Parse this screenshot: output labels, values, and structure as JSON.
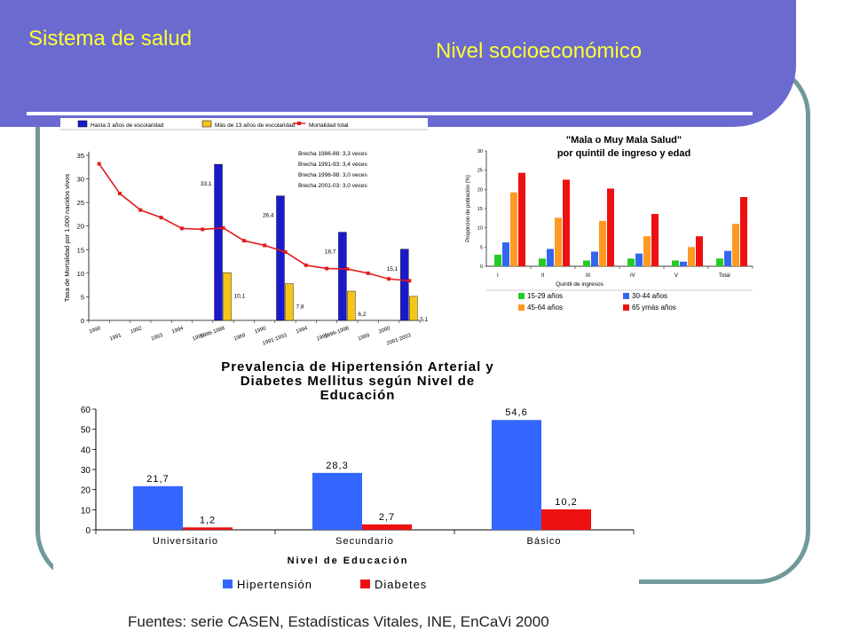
{
  "slide": {
    "title": "Sistema de salud",
    "subtitle": "Nivel socioeconómico",
    "sources": "Fuentes: serie CASEN, Estadísticas Vitales, INE, EnCaVi 2000"
  },
  "colors": {
    "banner": "#6a6ad0",
    "title_text": "#ffff33",
    "frame": "#6f9a99"
  },
  "chart_data": [
    {
      "id": "mortality",
      "type": "bar+line",
      "title": "",
      "xlabel": "",
      "ylabel": "Tasa de Mortalidad por 1.000 nacidos vivos",
      "ylim": [
        0,
        35
      ],
      "yticks": [
        0,
        5,
        10,
        15,
        20,
        25,
        30,
        35
      ],
      "legend": [
        "Hasta 3 años de escolaridad",
        "Más de 13 años de escolaridad",
        "Mortalidad total"
      ],
      "legend_position": "top",
      "series_colors": [
        "#1a1acc",
        "#f5c518",
        "#e21b1b"
      ],
      "categories": [
        "1990",
        "1991",
        "1992",
        "1993",
        "1994",
        "1995",
        "1986-1988",
        "1989",
        "1990",
        "1991-1993",
        "1994",
        "1995",
        "1996-1998",
        "1999",
        "2000",
        "2001-2003"
      ],
      "line_values": [
        33.2,
        26.9,
        23.4,
        21.8,
        19.5,
        19.3,
        19.6,
        16.9,
        15.9,
        14.5,
        11.7,
        11.0,
        10.9,
        10.0,
        8.8,
        8.4
      ],
      "bars": [
        {
          "category_index": 6,
          "low_edu": 33.1,
          "high_edu": 10.1,
          "low_label": "33,1",
          "high_label": "10,1"
        },
        {
          "category_index": 9,
          "low_edu": 26.4,
          "high_edu": 7.8,
          "low_label": "26,4",
          "high_label": "7,8"
        },
        {
          "category_index": 12,
          "low_edu": 18.7,
          "high_edu": 6.2,
          "low_label": "18,7",
          "high_label": "6,2"
        },
        {
          "category_index": 15,
          "low_edu": 15.1,
          "high_edu": 5.1,
          "low_label": "15,1",
          "high_label": "5,1"
        }
      ],
      "annotations": [
        "Brecha 1986-88: 3,3 veces",
        "Brecha 1991-93: 3,4 veces",
        "Brecha 1996-98: 3,0 veces",
        "Brecha 2001-03: 3,0 veces"
      ]
    },
    {
      "id": "health_quintile",
      "type": "bar",
      "title": "\"Mala o Muy Mala Salud\" por quintil de ingreso y edad",
      "xlabel": "Quintil de ingresos",
      "ylabel": "Proporcion de población (%)",
      "ylim": [
        0,
        30
      ],
      "yticks": [
        0,
        5,
        10,
        15,
        20,
        25,
        30
      ],
      "categories": [
        "I",
        "II",
        "III",
        "IV",
        "V",
        "Total"
      ],
      "legend_position": "bottom",
      "series": [
        {
          "name": "15-29 años",
          "color": "#22cc22",
          "values": [
            3.0,
            2.0,
            1.5,
            2.0,
            1.5,
            2.0
          ]
        },
        {
          "name": "30-44 años",
          "color": "#3366ee",
          "values": [
            6.2,
            4.5,
            3.8,
            3.3,
            1.2,
            4.0
          ]
        },
        {
          "name": "45-64 años",
          "color": "#ff9922",
          "values": [
            19.2,
            12.6,
            11.8,
            7.8,
            5.0,
            11.0
          ]
        },
        {
          "name": "65 ymás años",
          "color": "#ee1111",
          "values": [
            24.3,
            22.5,
            20.2,
            13.6,
            7.8,
            18.0
          ]
        }
      ]
    },
    {
      "id": "hypertension",
      "type": "bar",
      "title": "Prevalencia de Hipertensión Arterial y Diabetes Mellitus según Nivel de Educación",
      "title_lines": [
        "Prevalencia de Hipertensión Arterial y",
        "Diabetes Mellitus según Nivel de",
        "Educación"
      ],
      "xlabel": "Nivel de Educación",
      "ylabel": "",
      "ylim": [
        0,
        60
      ],
      "yticks": [
        0,
        10,
        20,
        30,
        40,
        50,
        60
      ],
      "categories": [
        "Universitario",
        "Secundario",
        "Básico"
      ],
      "legend_position": "bottom",
      "series": [
        {
          "name": "Hipertensión",
          "color": "#3366ff",
          "values": [
            21.7,
            28.3,
            54.6
          ],
          "labels": [
            "21,7",
            "28,3",
            "54,6"
          ]
        },
        {
          "name": "Diabetes",
          "color": "#ee1111",
          "values": [
            1.2,
            2.7,
            10.2
          ],
          "labels": [
            "1,2",
            "2,7",
            "10,2"
          ]
        }
      ]
    }
  ]
}
